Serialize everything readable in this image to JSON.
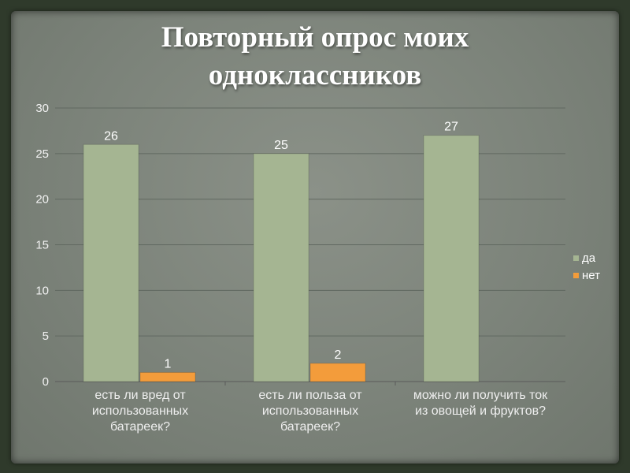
{
  "chart_data": {
    "type": "bar",
    "title_lines": [
      "Повторный опрос моих",
      "одноклассников"
    ],
    "xlabel": "",
    "ylabel": "",
    "ylim": [
      0,
      30
    ],
    "yticks": [
      0,
      5,
      10,
      15,
      20,
      25,
      30
    ],
    "grid": true,
    "legend": "right",
    "categories": [
      [
        "есть ли вред от",
        "использованных",
        "батареек?"
      ],
      [
        "есть ли польза от",
        "использованных",
        "батареек?"
      ],
      [
        "можно ли получить ток",
        "из овощей и фруктов?"
      ]
    ],
    "series": [
      {
        "name": "да",
        "color": "#a5b592",
        "values": [
          26,
          25,
          27
        ]
      },
      {
        "name": "нет",
        "color": "#f39c3b",
        "values": [
          1,
          2,
          null
        ]
      }
    ]
  }
}
